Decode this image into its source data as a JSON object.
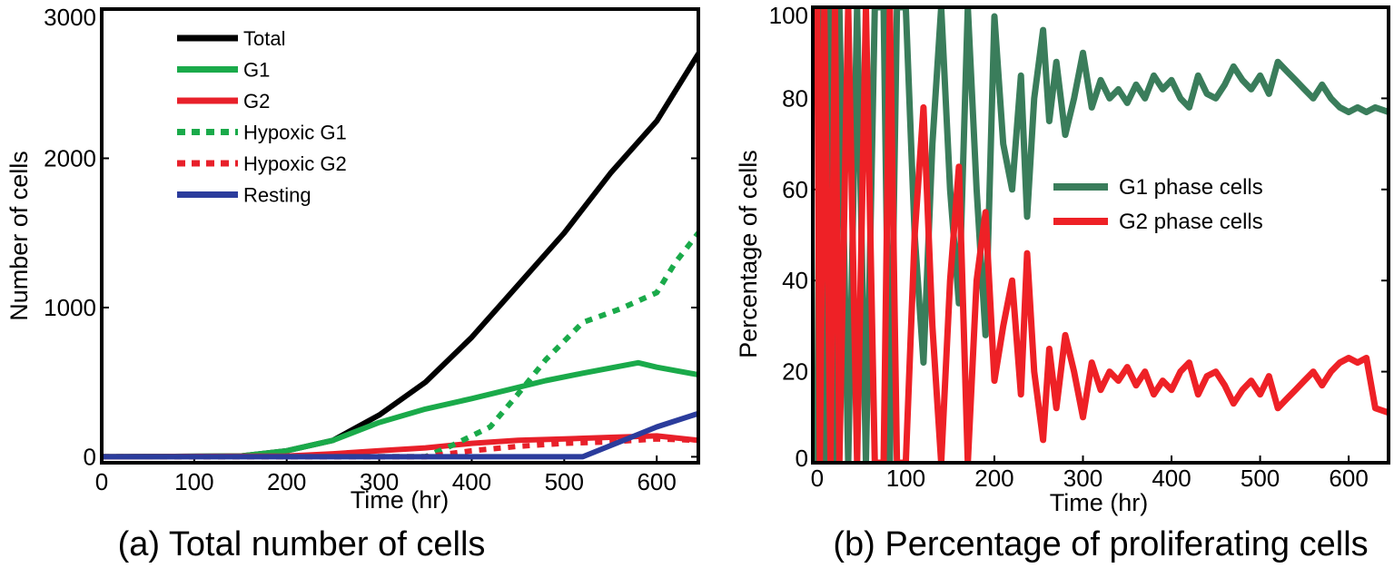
{
  "chart_data": [
    {
      "type": "line",
      "caption": "(a) Total number of cells",
      "xlabel": "Time (hr)",
      "ylabel": "Number of cells",
      "xlim": [
        0,
        645
      ],
      "ylim": [
        -40,
        3000
      ],
      "xticks": [
        "0",
        "100",
        "200",
        "300",
        "400",
        "500",
        "600"
      ],
      "yticks": [
        "0",
        "1000",
        "2000",
        "3000"
      ],
      "legend_position": "top-left",
      "series": [
        {
          "name": "Total",
          "color": "#000000",
          "dash": "solid",
          "x": [
            0,
            150,
            200,
            250,
            300,
            350,
            400,
            450,
            500,
            550,
            600,
            645
          ],
          "y": [
            0,
            5,
            40,
            110,
            280,
            500,
            800,
            1150,
            1500,
            1900,
            2250,
            2700
          ]
        },
        {
          "name": "G1",
          "color": "#1aaa4a",
          "dash": "solid",
          "x": [
            0,
            150,
            200,
            250,
            300,
            350,
            400,
            440,
            480,
            520,
            580,
            600,
            645
          ],
          "y": [
            0,
            5,
            40,
            110,
            230,
            320,
            390,
            450,
            510,
            560,
            630,
            600,
            550
          ]
        },
        {
          "name": "G2",
          "color": "#e8202a",
          "dash": "solid",
          "x": [
            0,
            200,
            250,
            300,
            350,
            400,
            450,
            500,
            550,
            600,
            645
          ],
          "y": [
            0,
            5,
            20,
            40,
            60,
            90,
            110,
            120,
            130,
            140,
            110
          ]
        },
        {
          "name": "Hypoxic G1",
          "color": "#1aaa4a",
          "dash": "dotted",
          "x": [
            0,
            350,
            380,
            420,
            450,
            480,
            520,
            560,
            600,
            620,
            645
          ],
          "y": [
            0,
            0,
            80,
            200,
            420,
            650,
            900,
            990,
            1100,
            1300,
            1500
          ]
        },
        {
          "name": "Hypoxic G2",
          "color": "#e8202a",
          "dash": "dotted",
          "x": [
            0,
            350,
            400,
            450,
            500,
            550,
            600,
            645
          ],
          "y": [
            0,
            0,
            40,
            70,
            90,
            100,
            120,
            110
          ]
        },
        {
          "name": "Resting",
          "color": "#2b3c9c",
          "dash": "solid",
          "x": [
            0,
            520,
            560,
            600,
            645
          ],
          "y": [
            0,
            0,
            100,
            200,
            290
          ]
        }
      ]
    },
    {
      "type": "line",
      "caption": "(b) Percentage of proliferating cells",
      "xlabel": "Time (hr)",
      "ylabel": "Percentage of cells",
      "xlim": [
        -5,
        645
      ],
      "ylim": [
        0,
        100
      ],
      "xticks": [
        "0",
        "100",
        "200",
        "300",
        "400",
        "500",
        "600"
      ],
      "yticks": [
        "0",
        "20",
        "40",
        "60",
        "80",
        "100"
      ],
      "legend_position": "center-right",
      "series": [
        {
          "name": "G1 phase cells",
          "color": "#3a7d5b",
          "dash": "solid",
          "x": [
            0,
            3,
            8,
            15,
            20,
            25,
            35,
            45,
            55,
            65,
            75,
            82,
            90,
            100,
            110,
            120,
            130,
            140,
            150,
            160,
            170,
            180,
            190,
            200,
            210,
            220,
            230,
            237,
            245,
            255,
            262,
            270,
            280,
            290,
            300,
            310,
            320,
            330,
            340,
            350,
            360,
            370,
            380,
            390,
            400,
            410,
            420,
            430,
            440,
            450,
            460,
            470,
            480,
            490,
            500,
            510,
            520,
            530,
            540,
            550,
            560,
            570,
            580,
            590,
            600,
            610,
            620,
            630,
            645
          ],
          "y": [
            0,
            100,
            0,
            100,
            0,
            100,
            0,
            100,
            0,
            100,
            100,
            0,
            100,
            100,
            50,
            22,
            70,
            100,
            60,
            35,
            100,
            60,
            28,
            98,
            70,
            60,
            85,
            54,
            80,
            95,
            75,
            88,
            72,
            80,
            90,
            78,
            84,
            80,
            82,
            79,
            83,
            80,
            85,
            82,
            84,
            80,
            78,
            85,
            81,
            80,
            83,
            87,
            84,
            82,
            85,
            81,
            88,
            86,
            84,
            82,
            80,
            83,
            80,
            78,
            77,
            78,
            77,
            78,
            77
          ]
        },
        {
          "name": "G2 phase cells",
          "color": "#ee2126",
          "dash": "solid",
          "x": [
            0,
            3,
            8,
            15,
            20,
            25,
            35,
            45,
            55,
            65,
            75,
            82,
            90,
            100,
            110,
            120,
            130,
            140,
            150,
            160,
            170,
            180,
            190,
            200,
            210,
            220,
            230,
            237,
            245,
            255,
            262,
            270,
            280,
            290,
            300,
            310,
            320,
            330,
            340,
            350,
            360,
            370,
            380,
            390,
            400,
            410,
            420,
            430,
            440,
            450,
            460,
            470,
            480,
            490,
            500,
            510,
            520,
            530,
            540,
            550,
            560,
            570,
            580,
            590,
            600,
            610,
            620,
            630,
            645
          ],
          "y": [
            100,
            0,
            100,
            0,
            100,
            0,
            100,
            0,
            100,
            0,
            0,
            100,
            0,
            0,
            50,
            78,
            30,
            0,
            40,
            65,
            0,
            40,
            55,
            18,
            30,
            40,
            15,
            46,
            20,
            5,
            25,
            12,
            28,
            20,
            10,
            22,
            16,
            20,
            18,
            21,
            17,
            20,
            15,
            18,
            16,
            20,
            22,
            15,
            19,
            20,
            17,
            13,
            16,
            18,
            15,
            19,
            12,
            14,
            16,
            18,
            20,
            17,
            20,
            22,
            23,
            22,
            23,
            12,
            11
          ]
        }
      ]
    }
  ]
}
